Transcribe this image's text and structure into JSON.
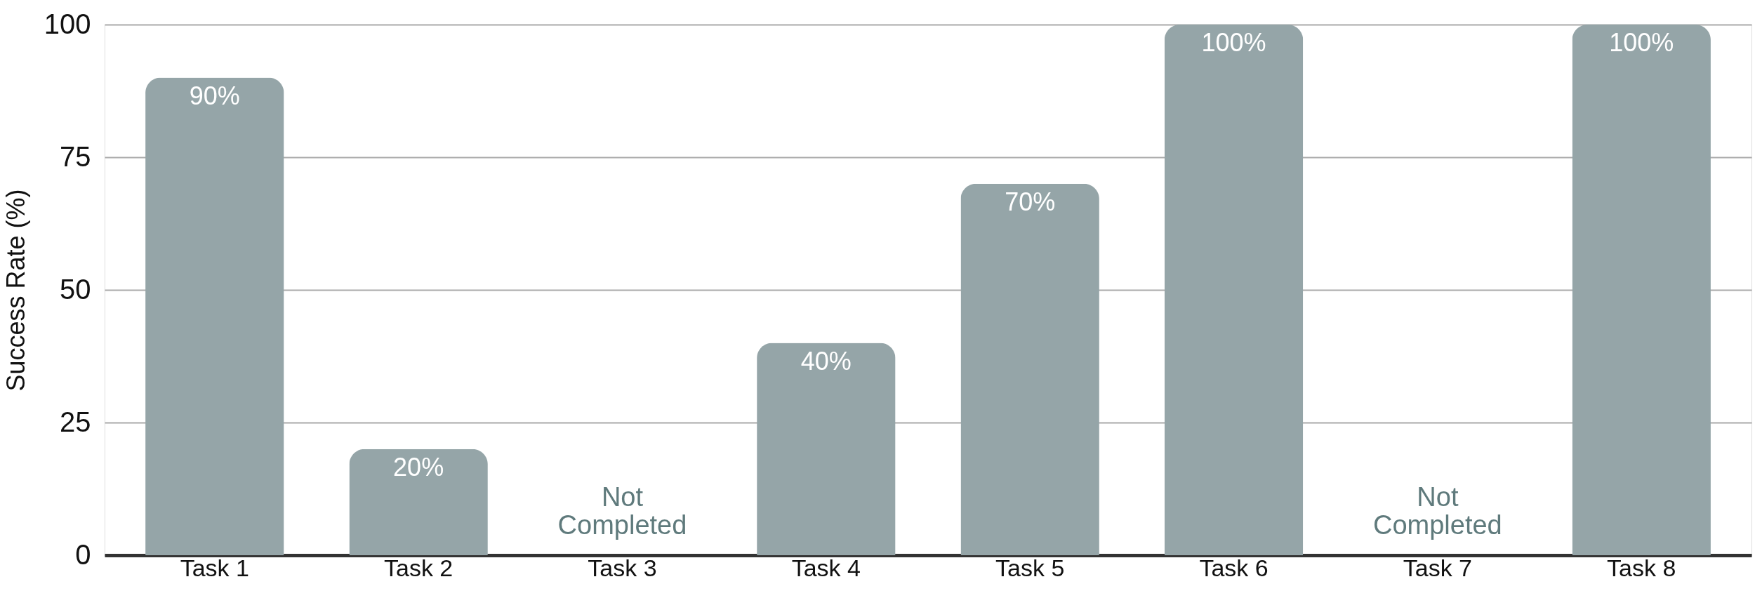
{
  "chart_data": {
    "type": "bar",
    "ylabel": "Success Rate (%)",
    "categories": [
      "Task 1",
      "Task 2",
      "Task 3",
      "Task 4",
      "Task 5",
      "Task 6",
      "Task 7",
      "Task 8"
    ],
    "values": [
      90,
      20,
      null,
      40,
      70,
      100,
      null,
      100
    ],
    "value_labels": [
      "90%",
      "20%",
      null,
      "40%",
      "70%",
      "100%",
      null,
      "100%"
    ],
    "color": "#95a5a8",
    "ylim": [
      0,
      100
    ],
    "yticks": [
      0,
      25,
      50,
      75,
      100
    ],
    "grid": "y",
    "annotations": [
      "Not Completed",
      "Not Completed"
    ]
  }
}
